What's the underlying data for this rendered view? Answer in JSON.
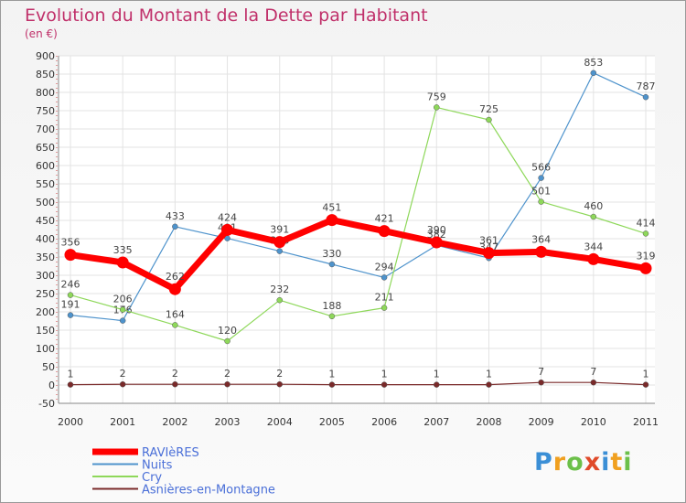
{
  "chart_data": {
    "type": "line",
    "title": "Evolution du Montant de la Dette par Habitant",
    "subtitle": "(en €)",
    "categories": [
      "2000",
      "2001",
      "2002",
      "2003",
      "2004",
      "2005",
      "2006",
      "2007",
      "2008",
      "2009",
      "2010",
      "2011"
    ],
    "ylim": [
      -50,
      900
    ],
    "yticks": [
      "-50",
      "0",
      "50",
      "100",
      "150",
      "200",
      "250",
      "300",
      "350",
      "400",
      "450",
      "500",
      "550",
      "600",
      "650",
      "700",
      "750",
      "800",
      "850",
      "900"
    ],
    "grid": true,
    "legend_position": "bottom-left",
    "series": [
      {
        "name": "RAVIèRES",
        "color": "#ff0000",
        "values": [
          356,
          335,
          262,
          424,
          391,
          451,
          421,
          390,
          361,
          364,
          344,
          319
        ]
      },
      {
        "name": "Nuits",
        "color": "#4e93cc",
        "values": [
          191,
          176,
          433,
          401,
          366,
          330,
          294,
          382,
          347,
          566,
          853,
          787
        ]
      },
      {
        "name": "Cry",
        "color": "#8ed85a",
        "values": [
          246,
          206,
          164,
          120,
          232,
          188,
          211,
          759,
          725,
          501,
          460,
          414
        ]
      },
      {
        "name": "Asnières-en-Montagne",
        "color": "#7a2a2a",
        "values": [
          1,
          2,
          2,
          2,
          2,
          1,
          1,
          1,
          1,
          7,
          7,
          1
        ]
      }
    ],
    "logo": "Proxiti"
  }
}
